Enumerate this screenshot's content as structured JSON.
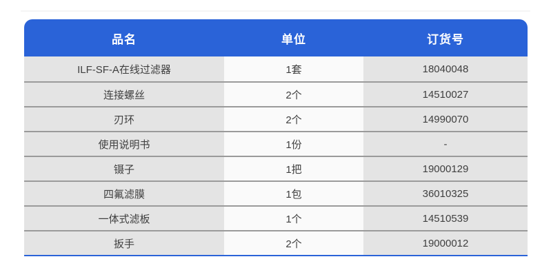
{
  "chart_data": {
    "type": "table",
    "columns": [
      "品名",
      "单位",
      "订货号"
    ],
    "rows": [
      [
        "ILF-SF-A在线过滤器",
        "1套",
        "18040048"
      ],
      [
        "连接螺丝",
        "2个",
        "14510027"
      ],
      [
        "刃环",
        "2个",
        "14990070"
      ],
      [
        "使用说明书",
        "1份",
        "-"
      ],
      [
        "镊子",
        "1把",
        "19000129"
      ],
      [
        "四氟滤膜",
        "1包",
        "36010325"
      ],
      [
        "一体式滤板",
        "1个",
        "14510539"
      ],
      [
        "扳手",
        "2个",
        "19000012"
      ]
    ]
  },
  "colors": {
    "header_bg": "#2a63d8",
    "header_text": "#ffffff",
    "cell_bg_outer": "#e4e4e4",
    "cell_bg_middle": "#fafafa",
    "row_divider": "#9a9a9a",
    "bottom_border": "#2a63d8",
    "cell_text": "#3f3f3f",
    "page_bg": "#ffffff"
  }
}
